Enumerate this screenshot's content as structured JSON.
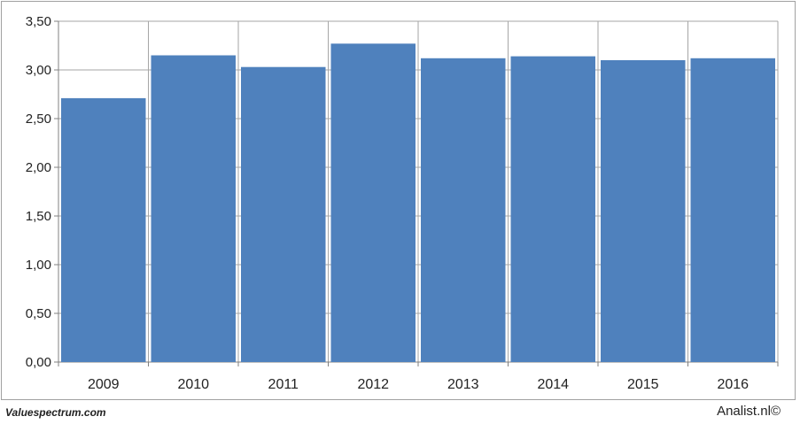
{
  "footer": {
    "left_text": "Valuespectrum.com",
    "right_text": "Analist.nl©"
  },
  "chart_data": {
    "type": "bar",
    "categories": [
      "2009",
      "2010",
      "2011",
      "2012",
      "2013",
      "2014",
      "2015",
      "2016"
    ],
    "values": [
      2.71,
      3.15,
      3.03,
      3.27,
      3.12,
      3.14,
      3.1,
      3.12
    ],
    "title": "",
    "xlabel": "",
    "ylabel": "",
    "ylim": [
      0,
      3.5
    ],
    "yticks": [
      "0,00",
      "0,50",
      "1,00",
      "1,50",
      "2,00",
      "2,50",
      "3,00",
      "3,50"
    ],
    "grid": true,
    "bar_color": "#4f81bd",
    "grid_color": "#a6a6a6"
  }
}
